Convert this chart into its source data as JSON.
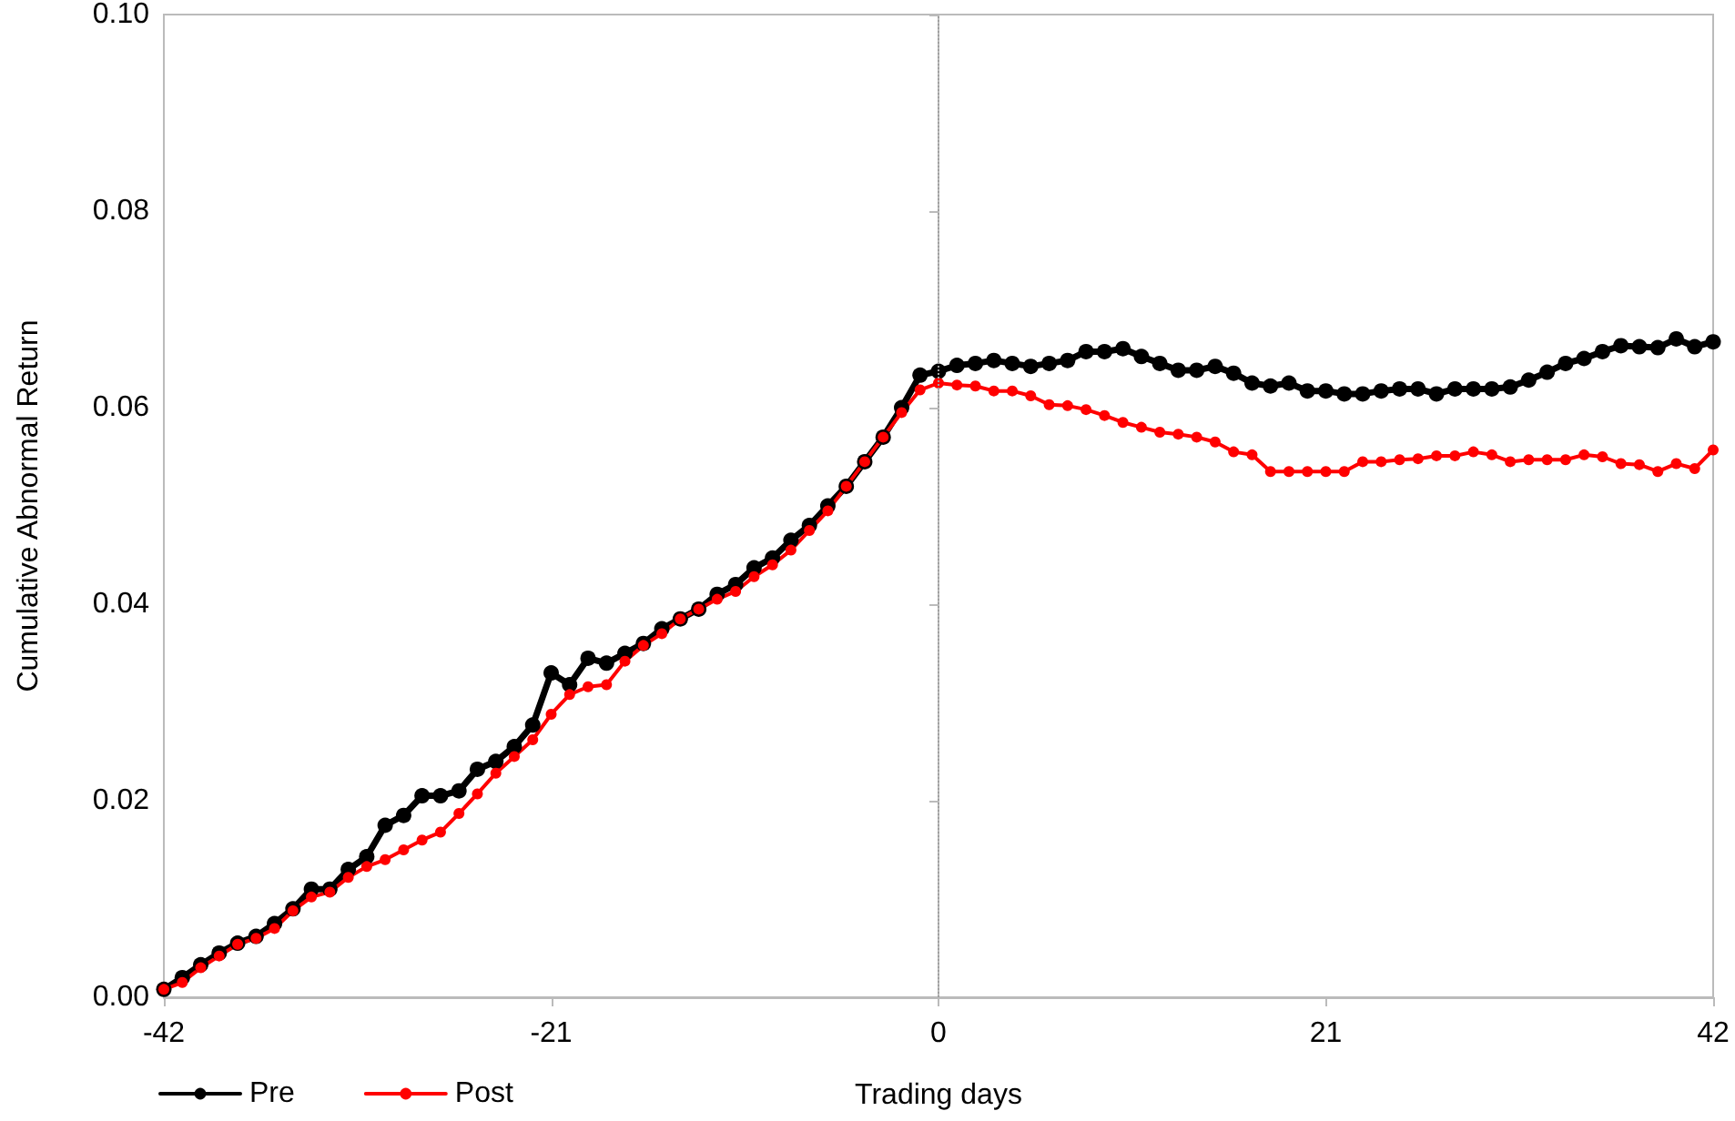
{
  "chart_data": {
    "type": "line",
    "xlabel": "Trading days",
    "ylabel": "Cumulative Abnormal Return",
    "x": [
      -42,
      -41,
      -40,
      -39,
      -38,
      -37,
      -36,
      -35,
      -34,
      -33,
      -32,
      -31,
      -30,
      -29,
      -28,
      -27,
      -26,
      -25,
      -24,
      -23,
      -22,
      -21,
      -20,
      -19,
      -18,
      -17,
      -16,
      -15,
      -14,
      -13,
      -12,
      -11,
      -10,
      -9,
      -8,
      -7,
      -6,
      -5,
      -4,
      -3,
      -2,
      -1,
      0,
      1,
      2,
      3,
      4,
      5,
      6,
      7,
      8,
      9,
      10,
      11,
      12,
      13,
      14,
      15,
      16,
      17,
      18,
      19,
      20,
      21,
      22,
      23,
      24,
      25,
      26,
      27,
      28,
      29,
      30,
      31,
      32,
      33,
      34,
      35,
      36,
      37,
      38,
      39,
      40,
      41,
      42
    ],
    "series": [
      {
        "name": "Pre",
        "color": "#000000",
        "values": [
          0.0008,
          0.002,
          0.0033,
          0.0045,
          0.0055,
          0.0062,
          0.0075,
          0.009,
          0.011,
          0.011,
          0.013,
          0.0143,
          0.0175,
          0.0185,
          0.0205,
          0.0205,
          0.021,
          0.0232,
          0.024,
          0.0255,
          0.0277,
          0.033,
          0.0318,
          0.0345,
          0.034,
          0.035,
          0.036,
          0.0375,
          0.0385,
          0.0395,
          0.041,
          0.042,
          0.0437,
          0.0447,
          0.0465,
          0.048,
          0.05,
          0.052,
          0.0545,
          0.057,
          0.06,
          0.0633,
          0.0637,
          0.0643,
          0.0645,
          0.0648,
          0.0645,
          0.0642,
          0.0645,
          0.0648,
          0.0657,
          0.0657,
          0.066,
          0.0652,
          0.0645,
          0.0638,
          0.0638,
          0.0642,
          0.0635,
          0.0625,
          0.0622,
          0.0625,
          0.0617,
          0.0617,
          0.0614,
          0.0614,
          0.0617,
          0.0619,
          0.0619,
          0.0614,
          0.0619,
          0.0619,
          0.0619,
          0.0621,
          0.0628,
          0.0636,
          0.0645,
          0.065,
          0.0657,
          0.0663,
          0.0662,
          0.0661,
          0.067,
          0.0662,
          0.0667
        ]
      },
      {
        "name": "Post",
        "color": "#ff0000",
        "values": [
          0.0008,
          0.0015,
          0.003,
          0.0042,
          0.0054,
          0.006,
          0.007,
          0.0088,
          0.0102,
          0.0107,
          0.0122,
          0.0133,
          0.014,
          0.015,
          0.016,
          0.0168,
          0.0187,
          0.0207,
          0.0228,
          0.0245,
          0.0262,
          0.0288,
          0.0308,
          0.0316,
          0.0318,
          0.0342,
          0.0358,
          0.037,
          0.0385,
          0.0395,
          0.0405,
          0.0413,
          0.0428,
          0.044,
          0.0455,
          0.0475,
          0.0495,
          0.052,
          0.0545,
          0.057,
          0.0595,
          0.0618,
          0.0625,
          0.0623,
          0.0622,
          0.0617,
          0.0617,
          0.0612,
          0.0603,
          0.0602,
          0.0598,
          0.0592,
          0.0585,
          0.058,
          0.0575,
          0.0573,
          0.057,
          0.0565,
          0.0555,
          0.0552,
          0.0535,
          0.0535,
          0.0535,
          0.0535,
          0.0535,
          0.0545,
          0.0545,
          0.0547,
          0.0548,
          0.0551,
          0.0551,
          0.0555,
          0.0552,
          0.0545,
          0.0547,
          0.0547,
          0.0547,
          0.0552,
          0.055,
          0.0543,
          0.0542,
          0.0535,
          0.0543,
          0.0538,
          0.0557
        ]
      }
    ],
    "xlim": [
      -42,
      42
    ],
    "xticks": [
      -42,
      -21,
      0,
      21,
      42
    ],
    "ylim": [
      0,
      0.1
    ],
    "yticks": [
      {
        "value": 0,
        "label": "0.00"
      },
      {
        "value": 0.02,
        "label": "0.02"
      },
      {
        "value": 0.04,
        "label": "0.04"
      },
      {
        "value": 0.06,
        "label": "0.06"
      },
      {
        "value": 0.08,
        "label": "0.08"
      },
      {
        "value": 0.1,
        "label": "0.10"
      }
    ],
    "ref_lines": [
      {
        "axis": "x",
        "value": 0,
        "color": "#a0a0a0",
        "line_style": "dotted"
      }
    ],
    "grid": false,
    "legend": "bottom left",
    "marker": "circle",
    "line_style": "solid"
  }
}
